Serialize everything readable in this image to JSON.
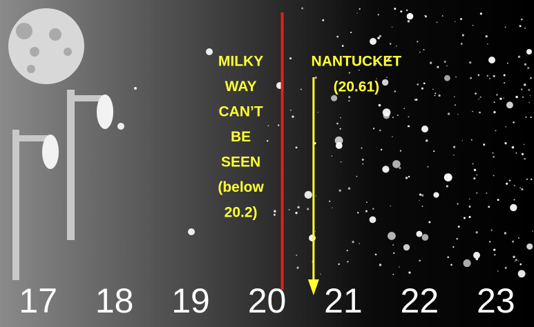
{
  "chart_data": {
    "type": "scale",
    "xlim": [
      16.5,
      23.5
    ],
    "xticks": [
      17,
      18,
      19,
      20,
      21,
      22,
      23
    ],
    "markers": [
      {
        "value": 20.2,
        "color": "#e02020",
        "lines": [
          "MILKY",
          "WAY",
          "CAN’T",
          "BE",
          "SEEN",
          "(below",
          "20.2)"
        ]
      },
      {
        "value": 20.61,
        "color": "#ffff33",
        "lines": [
          "NANTUCKET",
          "(20.61)"
        ]
      }
    ]
  }
}
